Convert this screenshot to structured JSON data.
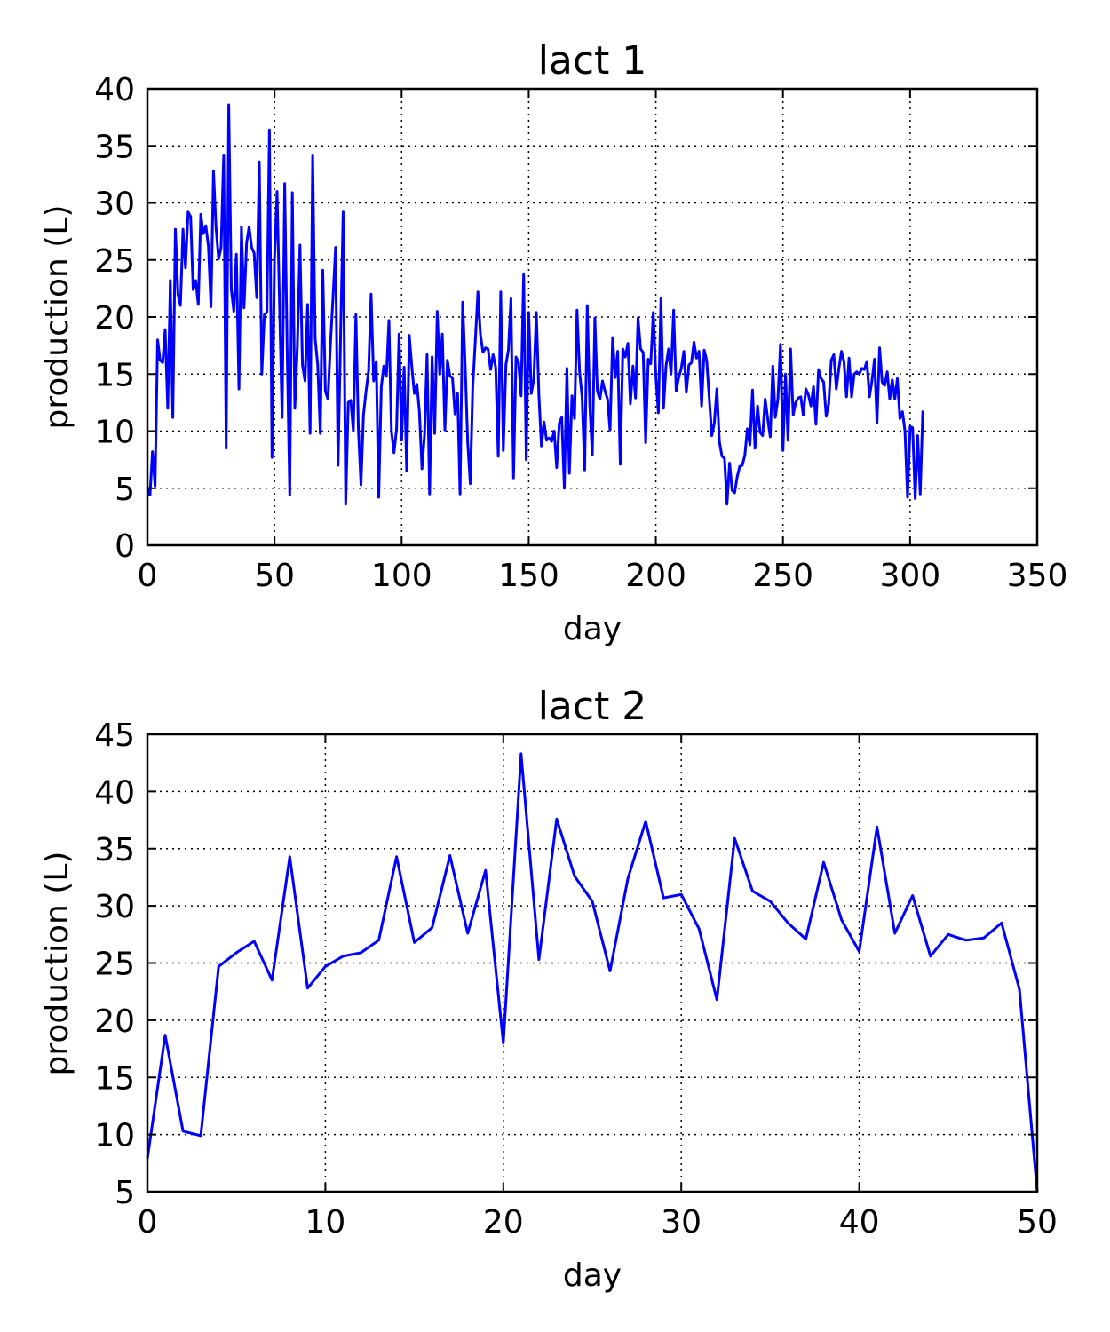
{
  "chart_data": [
    {
      "type": "line",
      "title": "lact 1",
      "xlabel": "day",
      "ylabel": "production (L)",
      "xlim": [
        0,
        350
      ],
      "ylim": [
        0,
        40
      ],
      "xticks": [
        "0",
        "50",
        "100",
        "150",
        "200",
        "250",
        "300",
        "350"
      ],
      "yticks": [
        "0",
        "5",
        "10",
        "15",
        "20",
        "25",
        "30",
        "35",
        "40"
      ],
      "grid": true,
      "color": "#0000ff",
      "x": [
        0,
        1,
        2,
        3,
        4,
        5,
        6,
        7,
        8,
        9,
        10,
        11,
        12,
        13,
        14,
        15,
        16,
        17,
        18,
        19,
        20,
        21,
        22,
        23,
        24,
        25,
        26,
        27,
        28,
        29,
        30,
        31,
        32,
        33,
        34,
        35,
        36,
        37,
        38,
        39,
        40,
        41,
        42,
        43,
        44,
        45,
        46,
        47,
        48,
        49,
        50,
        51,
        52,
        53,
        54,
        55,
        56,
        57,
        58,
        59,
        60,
        61,
        62,
        63,
        64,
        65,
        66,
        67,
        68,
        69,
        70,
        71,
        72,
        73,
        74,
        75,
        76,
        77,
        78,
        79,
        80,
        81,
        82,
        83,
        84,
        85,
        86,
        87,
        88,
        89,
        90,
        91,
        92,
        93,
        94,
        95,
        96,
        97,
        98,
        99,
        100,
        101,
        102,
        103,
        104,
        105,
        106,
        107,
        108,
        109,
        110,
        111,
        112,
        113,
        114,
        115,
        116,
        117,
        118,
        119,
        120,
        121,
        122,
        123,
        124,
        125,
        126,
        127,
        128,
        129,
        130,
        131,
        132,
        133,
        134,
        135,
        136,
        137,
        138,
        139,
        140,
        141,
        142,
        143,
        144,
        145,
        146,
        147,
        148,
        149,
        150,
        151,
        152,
        153,
        154,
        155,
        156,
        157,
        158,
        159,
        160,
        161,
        162,
        163,
        164,
        165,
        166,
        167,
        168,
        169,
        170,
        171,
        172,
        173,
        174,
        175,
        176,
        177,
        178,
        179,
        180,
        181,
        182,
        183,
        184,
        185,
        186,
        187,
        188,
        189,
        190,
        191,
        192,
        193,
        194,
        195,
        196,
        197,
        198,
        199,
        200,
        201,
        202,
        203,
        204,
        205,
        206,
        207,
        208,
        209,
        210,
        211,
        212,
        213,
        214,
        215,
        216,
        217,
        218,
        219,
        220,
        221,
        222,
        223,
        224,
        225,
        226,
        227,
        228,
        229,
        230,
        231,
        232,
        233,
        234,
        235,
        236,
        237,
        238,
        239,
        240,
        241,
        242,
        243,
        244,
        245,
        246,
        247,
        248,
        249,
        250,
        251,
        252,
        253,
        254,
        255,
        256,
        257,
        258,
        259,
        260,
        261,
        262,
        263,
        264,
        265,
        266,
        267,
        268,
        269,
        270,
        271,
        272,
        273,
        274,
        275,
        276,
        277,
        278,
        279,
        280,
        281,
        282,
        283,
        284,
        285,
        286,
        287,
        288,
        289,
        290,
        291,
        292,
        293,
        294,
        295,
        296,
        297,
        298,
        299,
        300,
        301,
        302,
        303,
        304,
        305
      ],
      "y": [
        5.1,
        4.4,
        8.2,
        5.2,
        18.0,
        16.2,
        16.0,
        18.9,
        12.0,
        23.2,
        11.2,
        27.7,
        22.0,
        21.0,
        27.7,
        24.3,
        29.2,
        28.8,
        22.4,
        23.2,
        21.1,
        29.0,
        27.3,
        28.0,
        26.2,
        20.9,
        32.8,
        27.8,
        25.1,
        26.1,
        34.2,
        8.5,
        38.6,
        22.4,
        20.5,
        25.5,
        13.7,
        27.9,
        20.8,
        26.5,
        27.9,
        26.1,
        25.6,
        21.7,
        33.6,
        15.0,
        20.2,
        20.4,
        36.4,
        7.7,
        25.0,
        31.0,
        20.7,
        11.2,
        31.7,
        16.5,
        4.4,
        30.9,
        12.0,
        17.5,
        26.3,
        15.8,
        14.4,
        21.1,
        9.8,
        34.2,
        18.1,
        15.8,
        9.8,
        24.1,
        13.5,
        12.8,
        17.6,
        21.7,
        26.1,
        7.0,
        18.5,
        29.2,
        3.6,
        12.5,
        12.7,
        10.0,
        20.2,
        10.1,
        5.3,
        11.4,
        13.5,
        15.3,
        22.0,
        14.4,
        16.1,
        4.2,
        13.9,
        15.7,
        14.8,
        19.7,
        10.0,
        8.1,
        10.2,
        18.5,
        9.2,
        15.6,
        6.5,
        18.4,
        15.7,
        13.3,
        14.1,
        11.7,
        6.7,
        9.7,
        16.7,
        4.5,
        16.5,
        9.8,
        20.5,
        15.0,
        18.5,
        10.1,
        16.2,
        14.8,
        14.7,
        11.5,
        13.3,
        4.5,
        21.3,
        15.6,
        9.0,
        5.4,
        13.9,
        18.0,
        22.2,
        18.5,
        16.9,
        17.3,
        17.2,
        15.4,
        16.7,
        15.6,
        7.8,
        22.2,
        8.3,
        15.8,
        17.1,
        21.6,
        5.9,
        16.5,
        16.0,
        13.1,
        23.8,
        7.5,
        20.4,
        13.3,
        14.6,
        20.4,
        13.1,
        8.7,
        10.8,
        9.2,
        9.4,
        9.1,
        10.0,
        6.8,
        10.7,
        11.2,
        5.0,
        15.5,
        6.3,
        13.1,
        11.1,
        20.6,
        15.2,
        13.0,
        6.6,
        21.0,
        12.4,
        7.9,
        19.9,
        13.5,
        12.8,
        14.4,
        13.5,
        12.8,
        10.1,
        18.2,
        14.7,
        17.0,
        7.1,
        17.2,
        16.5,
        17.7,
        12.4,
        15.7,
        12.9,
        19.9,
        17.2,
        16.9,
        9.0,
        16.3,
        15.9,
        20.4,
        14.8,
        11.6,
        21.6,
        12.0,
        15.7,
        17.2,
        15.0,
        20.6,
        13.5,
        14.7,
        15.5,
        17.0,
        13.4,
        15.8,
        16.0,
        17.8,
        16.4,
        17.0,
        12.2,
        17.1,
        16.2,
        12.9,
        9.6,
        10.7,
        13.7,
        9.1,
        7.8,
        7.6,
        3.6,
        7.2,
        4.8,
        4.6,
        6.0,
        6.9,
        7.0,
        7.9,
        10.2,
        8.8,
        13.6,
        8.5,
        12.2,
        9.9,
        9.6,
        12.8,
        11.1,
        9.5,
        15.7,
        11.2,
        12.8,
        17.6,
        8.3,
        15.0,
        9.2,
        17.2,
        11.4,
        12.5,
        12.9,
        13.0,
        11.4,
        13.7,
        13.2,
        12.2,
        13.9,
        10.6,
        15.4,
        14.6,
        14.3,
        11.3,
        12.4,
        16.2,
        16.7,
        13.7,
        15.5,
        17.0,
        16.1,
        13.0,
        16.4,
        13.0,
        15.0,
        15.2,
        15.0,
        15.5,
        15.4,
        16.1,
        13.0,
        14.4,
        16.3,
        10.7,
        17.3,
        14.3,
        14.0,
        15.2,
        12.8,
        14.5,
        12.8,
        14.6,
        11.1,
        11.7,
        10.0,
        4.2,
        10.4,
        10.3,
        4.1,
        9.6,
        4.5,
        11.8
      ]
    },
    {
      "type": "line",
      "title": "lact 2",
      "xlabel": "day",
      "ylabel": "production (L)",
      "xlim": [
        0,
        50
      ],
      "ylim": [
        5,
        45
      ],
      "xticks": [
        "0",
        "10",
        "20",
        "30",
        "40",
        "50"
      ],
      "yticks": [
        "5",
        "10",
        "15",
        "20",
        "25",
        "30",
        "35",
        "40",
        "45"
      ],
      "grid": true,
      "color": "#0000ff",
      "x": [
        0,
        1,
        2,
        3,
        4,
        5,
        6,
        7,
        8,
        9,
        10,
        11,
        12,
        13,
        14,
        15,
        16,
        17,
        18,
        19,
        20,
        21,
        22,
        23,
        24,
        25,
        26,
        27,
        28,
        29,
        30,
        31,
        32,
        33,
        34,
        35,
        36,
        37,
        38,
        39,
        40,
        41,
        42,
        43,
        44,
        45,
        46,
        47,
        48,
        49,
        50
      ],
      "y": [
        7.9,
        18.7,
        10.3,
        9.9,
        24.7,
        25.9,
        26.9,
        23.5,
        34.3,
        22.8,
        24.7,
        25.6,
        25.9,
        27.0,
        34.3,
        26.8,
        28.1,
        34.4,
        27.6,
        33.1,
        18.0,
        43.3,
        25.3,
        37.6,
        32.6,
        30.4,
        24.3,
        32.4,
        37.4,
        30.7,
        31.0,
        28.0,
        21.8,
        35.9,
        31.3,
        30.4,
        28.5,
        27.1,
        33.8,
        28.8,
        26.0,
        36.9,
        27.6,
        30.9,
        25.6,
        27.5,
        27.0,
        27.2,
        28.5,
        22.7,
        5.0
      ]
    }
  ]
}
